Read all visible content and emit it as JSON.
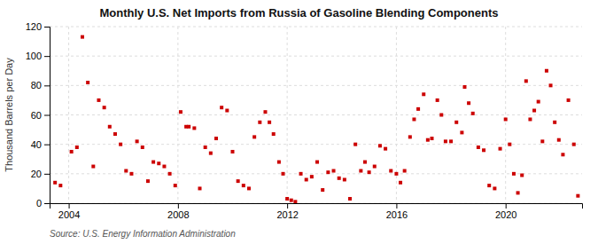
{
  "chart_data": {
    "type": "scatter",
    "title": "Monthly U.S. Net Imports from Russia of Gasoline Blending Components",
    "ylabel": "Thousand Barrels per Day",
    "annotations": [
      "Source: U.S. Energy Information Administration"
    ],
    "color": "#cc0000",
    "marker": "square",
    "grid": true,
    "xlim": [
      2003.3,
      2022.8
    ],
    "xticks": [
      2004,
      2008,
      2012,
      2016,
      2020
    ],
    "ylim": [
      0,
      120
    ],
    "yticks": [
      0,
      20,
      40,
      60,
      80,
      100,
      120
    ],
    "x": [
      2003.5,
      2003.7,
      2004.1,
      2004.3,
      2004.5,
      2004.7,
      2004.9,
      2005.1,
      2005.3,
      2005.5,
      2005.7,
      2005.9,
      2006.1,
      2006.3,
      2006.5,
      2006.7,
      2006.9,
      2007.1,
      2007.3,
      2007.5,
      2007.7,
      2007.9,
      2008.1,
      2008.3,
      2008.4,
      2008.6,
      2008.8,
      2009.0,
      2009.2,
      2009.4,
      2009.6,
      2009.8,
      2010.0,
      2010.2,
      2010.4,
      2010.6,
      2010.8,
      2011.0,
      2011.2,
      2011.35,
      2011.5,
      2011.7,
      2011.85,
      2012.0,
      2012.15,
      2012.3,
      2012.5,
      2012.7,
      2012.9,
      2013.1,
      2013.3,
      2013.5,
      2013.7,
      2013.9,
      2014.1,
      2014.3,
      2014.5,
      2014.7,
      2014.85,
      2015.0,
      2015.2,
      2015.4,
      2015.6,
      2015.8,
      2016.0,
      2016.15,
      2016.3,
      2016.5,
      2016.65,
      2016.8,
      2017.0,
      2017.15,
      2017.3,
      2017.5,
      2017.65,
      2017.8,
      2018.0,
      2018.2,
      2018.4,
      2018.5,
      2018.65,
      2018.8,
      2019.0,
      2019.2,
      2019.4,
      2019.6,
      2019.8,
      2020.0,
      2020.15,
      2020.3,
      2020.45,
      2020.6,
      2020.75,
      2020.9,
      2021.05,
      2021.2,
      2021.35,
      2021.5,
      2021.65,
      2021.8,
      2021.95,
      2022.1,
      2022.3,
      2022.5,
      2022.65
    ],
    "values": [
      14,
      12,
      35,
      38,
      113,
      82,
      25,
      70,
      65,
      52,
      47,
      40,
      22,
      20,
      42,
      38,
      15,
      28,
      27,
      25,
      20,
      12,
      62,
      52,
      52,
      51,
      10,
      38,
      34,
      44,
      65,
      63,
      35,
      15,
      12,
      10,
      45,
      55,
      62,
      55,
      47,
      28,
      20,
      3,
      2,
      1,
      20,
      16,
      18,
      28,
      9,
      21,
      22,
      17,
      16,
      3,
      40,
      22,
      28,
      21,
      25,
      39,
      37,
      22,
      20,
      14,
      22,
      45,
      57,
      64,
      74,
      43,
      44,
      70,
      60,
      42,
      42,
      55,
      48,
      79,
      68,
      61,
      38,
      36,
      12,
      10,
      37,
      57,
      40,
      20,
      7,
      19,
      83,
      57,
      63,
      69,
      42,
      90,
      80,
      55,
      43,
      33,
      70,
      40,
      5
    ]
  }
}
